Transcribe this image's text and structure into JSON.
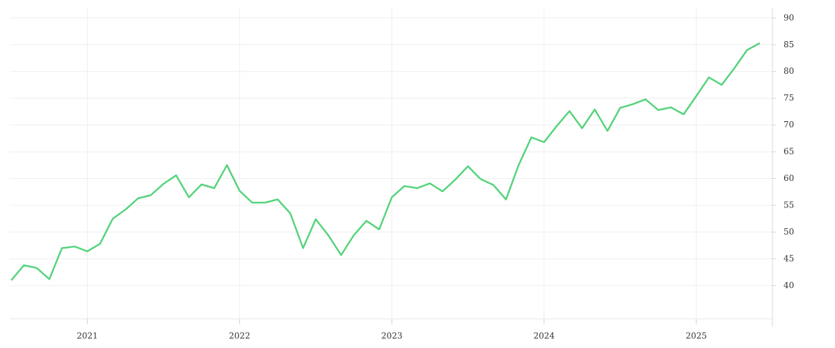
{
  "chart_data": {
    "type": "line",
    "x": [
      2020.5,
      2020.583,
      2020.667,
      2020.75,
      2020.833,
      2020.917,
      2021.0,
      2021.083,
      2021.167,
      2021.25,
      2021.333,
      2021.417,
      2021.5,
      2021.583,
      2021.667,
      2021.75,
      2021.833,
      2021.917,
      2022.0,
      2022.083,
      2022.167,
      2022.25,
      2022.333,
      2022.417,
      2022.5,
      2022.583,
      2022.667,
      2022.75,
      2022.833,
      2022.917,
      2023.0,
      2023.083,
      2023.167,
      2023.25,
      2023.333,
      2023.417,
      2023.5,
      2023.583,
      2023.667,
      2023.75,
      2023.833,
      2023.917,
      2024.0,
      2024.083,
      2024.167,
      2024.25,
      2024.333,
      2024.417,
      2024.5,
      2024.583,
      2024.667,
      2024.75,
      2024.833,
      2024.917,
      2025.0,
      2025.083,
      2025.167,
      2025.25,
      2025.333,
      2025.417
    ],
    "series": [
      {
        "color": "#56d37c",
        "values": [
          41.0,
          43.8,
          43.3,
          41.2,
          47.0,
          47.3,
          46.4,
          47.8,
          52.5,
          54.2,
          56.3,
          56.9,
          59.0,
          60.6,
          56.5,
          58.9,
          58.2,
          62.5,
          57.7,
          55.5,
          55.5,
          56.1,
          53.5,
          47.0,
          52.4,
          49.4,
          45.7,
          49.4,
          52.1,
          50.5,
          56.5,
          58.6,
          58.2,
          59.1,
          57.6,
          59.8,
          62.3,
          59.9,
          58.8,
          56.1,
          62.5,
          67.7,
          66.8,
          69.8,
          72.6,
          69.4,
          72.9,
          68.9,
          73.2,
          73.9,
          74.8,
          72.8,
          73.3,
          72.0,
          75.4,
          78.9,
          77.5,
          80.6,
          84.0,
          85.3
        ]
      }
    ],
    "xlim": [
      2020.49,
      2025.5
    ],
    "xticks": [
      2021,
      2022,
      2023,
      2024,
      2025
    ],
    "ylim": [
      33.8,
      91.8
    ],
    "yticks": [
      40,
      45,
      50,
      55,
      60,
      65,
      70,
      75,
      80,
      85,
      90
    ],
    "grid": true
  }
}
